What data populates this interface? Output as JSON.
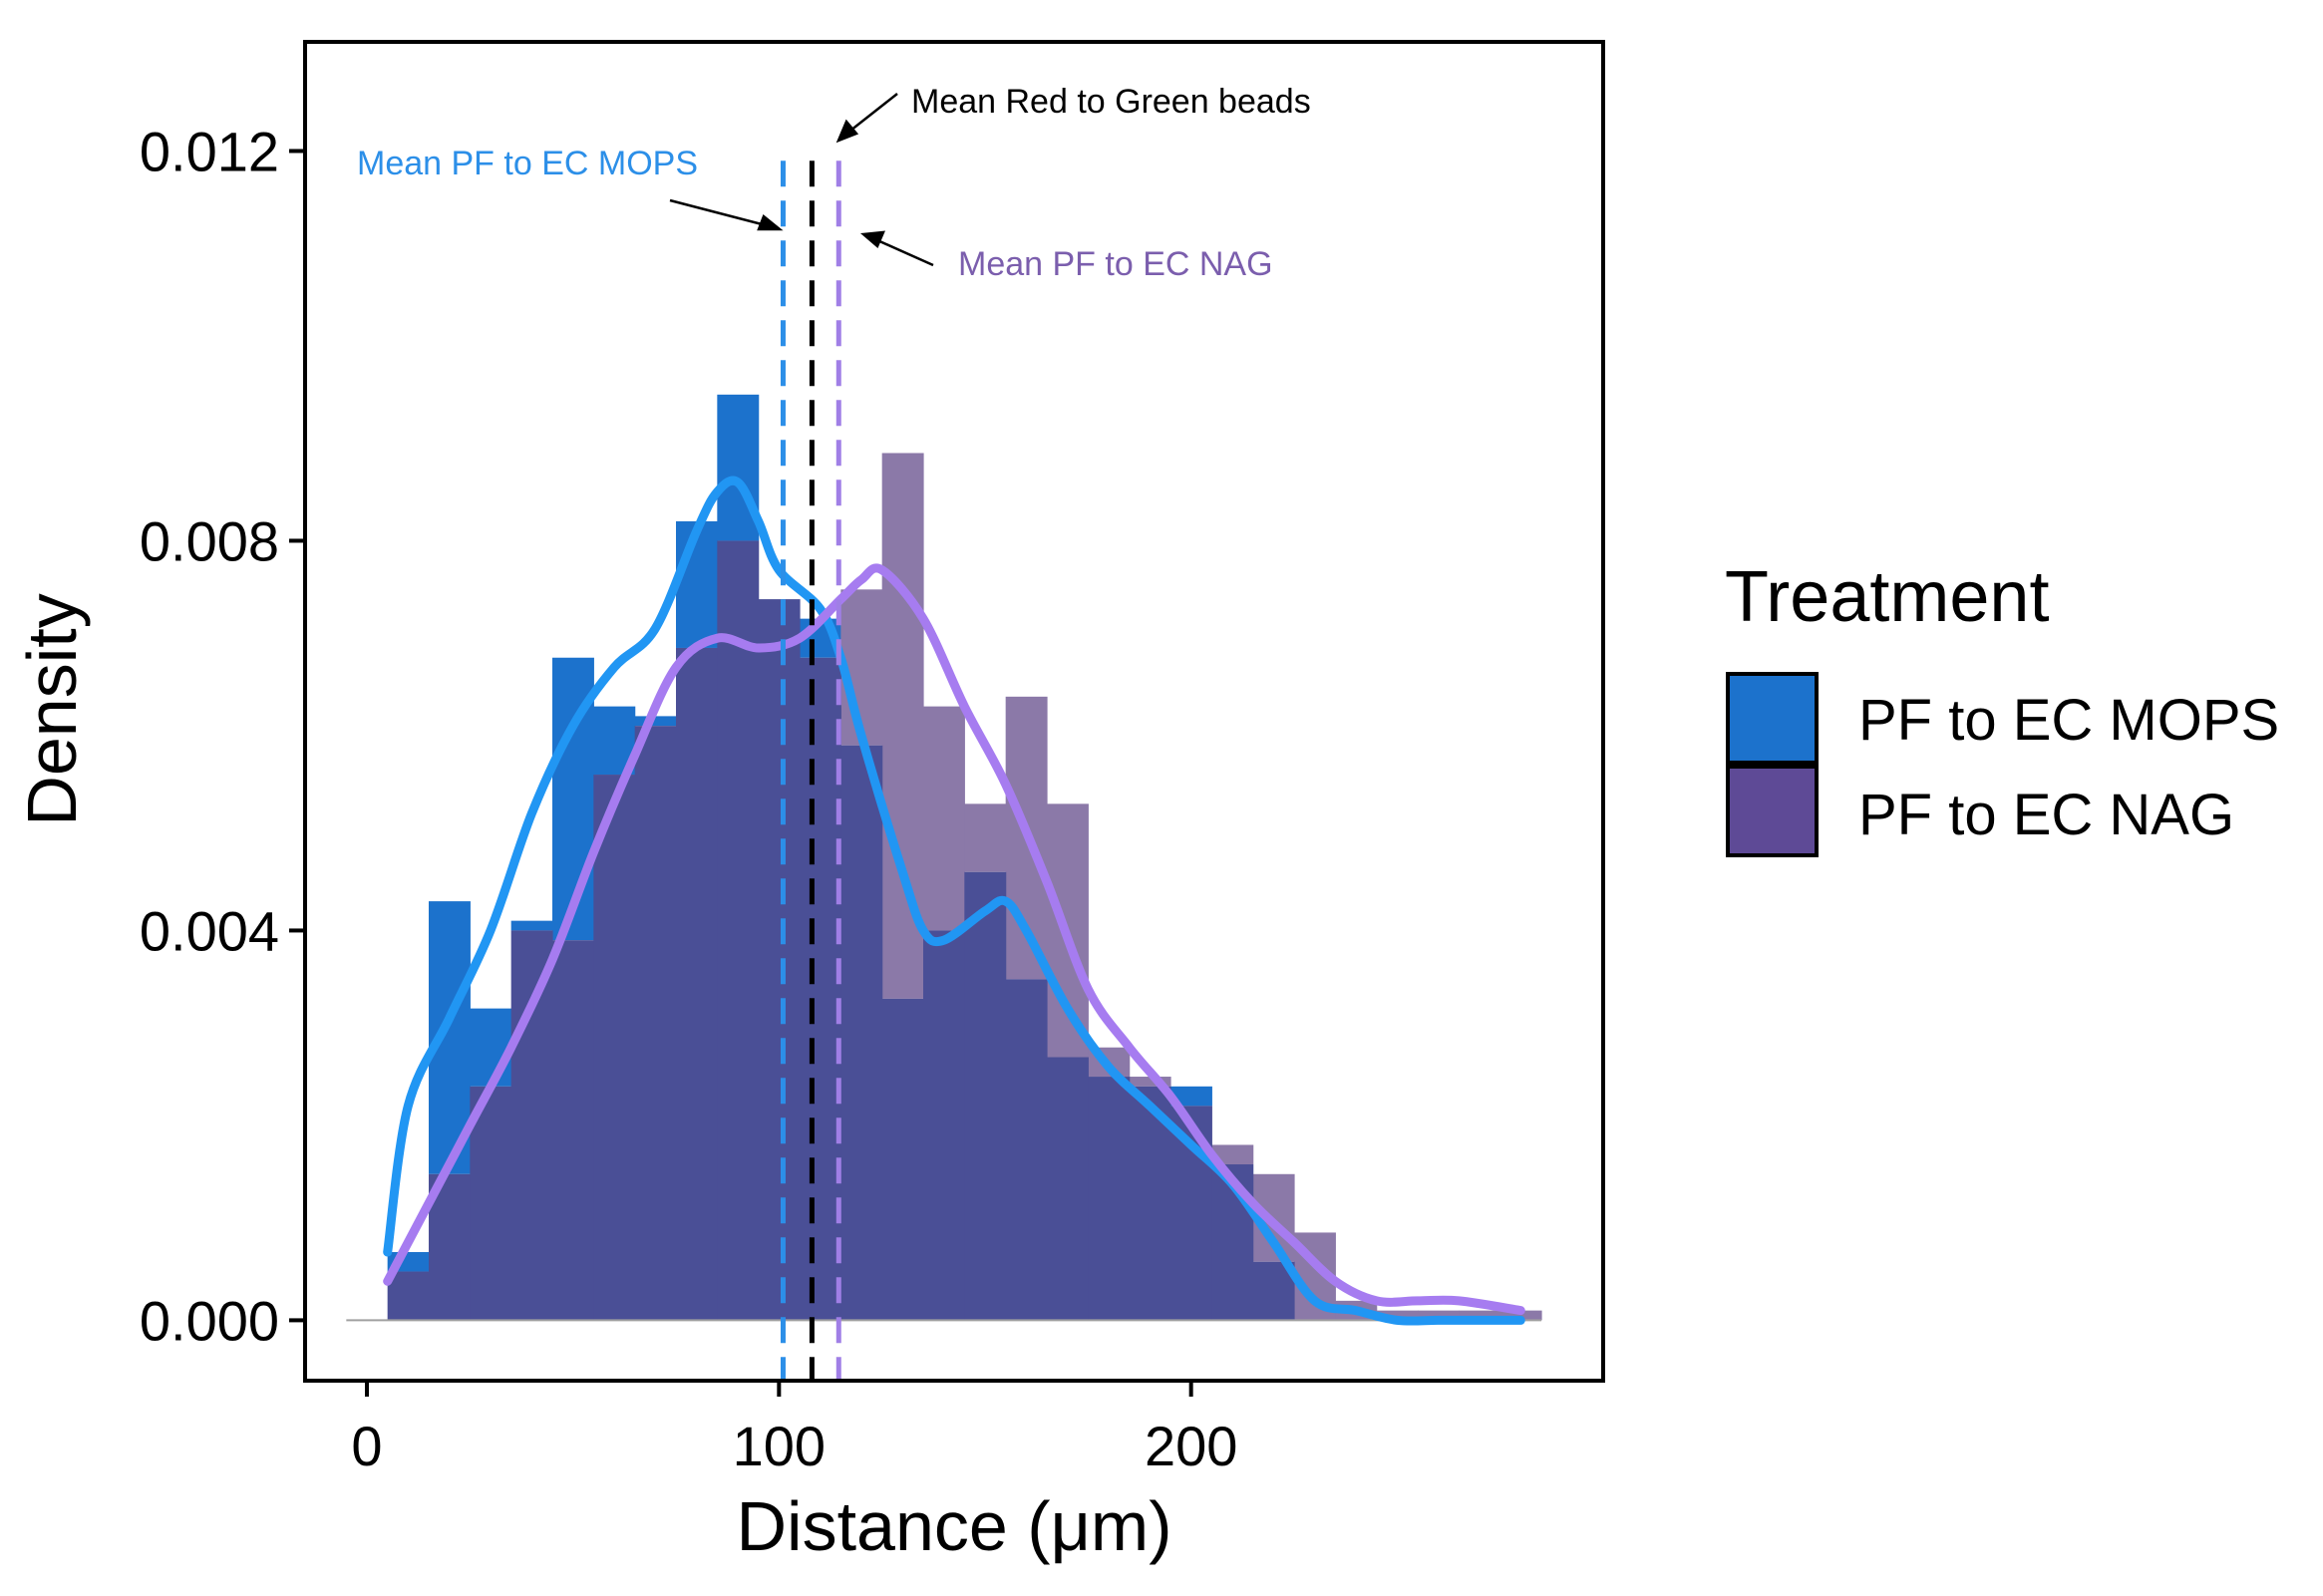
{
  "chart_data": {
    "type": "histogram",
    "title": "",
    "xlabel": "Distance (μm)",
    "ylabel": "Density",
    "xlim": [
      -15,
      300
    ],
    "ylim": [
      -0.00062,
      0.01312
    ],
    "x_ticks": [
      {
        "value": 0,
        "label": "0"
      },
      {
        "value": 100,
        "label": "100"
      },
      {
        "value": 200,
        "label": "200"
      }
    ],
    "y_ticks": [
      {
        "value": 0,
        "label": "0.000"
      },
      {
        "value": 0.004,
        "label": "0.004"
      },
      {
        "value": 0.008,
        "label": "0.008"
      },
      {
        "value": 0.012,
        "label": "0.012"
      }
    ],
    "bin_edges": [
      -5,
      5,
      15,
      25,
      35,
      45,
      55,
      65,
      75,
      85,
      95,
      105,
      115,
      125,
      135,
      145,
      155,
      165,
      175,
      185,
      195,
      205,
      215,
      225,
      235,
      245,
      255,
      265,
      275,
      285
    ],
    "series": [
      {
        "name": "PF to EC MOPS",
        "color": "#1C72CC",
        "densities": [
          0.0,
          0.0007,
          0.0043,
          0.0032,
          0.0041,
          0.0068,
          0.0063,
          0.0062,
          0.0082,
          0.0095,
          0.0074,
          0.0072,
          0.0059,
          0.0033,
          0.004,
          0.0046,
          0.0035,
          0.0027,
          0.0025,
          0.0024,
          0.0024,
          0.0016,
          0.0006,
          0.0,
          0.0,
          0.0,
          0.0,
          0.0,
          0.0
        ],
        "density_curve_x": [
          5,
          10,
          20,
          30,
          40,
          50,
          60,
          70,
          80,
          85,
          90,
          95,
          100,
          110,
          115,
          120,
          130,
          135,
          140,
          150,
          155,
          160,
          170,
          180,
          190,
          200,
          210,
          220,
          230,
          240,
          250,
          260,
          270,
          280
        ],
        "density_curve_y": [
          0.0007,
          0.0022,
          0.0031,
          0.004,
          0.0052,
          0.0061,
          0.0067,
          0.0071,
          0.0081,
          0.0085,
          0.0086,
          0.0082,
          0.0077,
          0.0073,
          0.0068,
          0.006,
          0.0046,
          0.004,
          0.0039,
          0.0042,
          0.0043,
          0.004,
          0.0032,
          0.0026,
          0.0022,
          0.0018,
          0.0014,
          0.0008,
          0.0002,
          0.0001,
          0.0,
          0.0,
          0.0,
          0.0
        ]
      },
      {
        "name": "PF to EC NAG",
        "color": "#5E4A96",
        "densities": [
          0.0,
          0.0005,
          0.0015,
          0.0024,
          0.004,
          0.0039,
          0.0056,
          0.0061,
          0.0069,
          0.008,
          0.0074,
          0.0068,
          0.0075,
          0.0089,
          0.0063,
          0.0053,
          0.0064,
          0.0053,
          0.0028,
          0.0025,
          0.0022,
          0.0018,
          0.0015,
          0.0009,
          0.0002,
          0.0001,
          0.0001,
          0.0001,
          0.0001
        ],
        "density_curve_x": [
          5,
          15,
          25,
          35,
          45,
          55,
          65,
          75,
          85,
          95,
          105,
          115,
          120,
          125,
          135,
          145,
          155,
          165,
          175,
          185,
          195,
          205,
          215,
          225,
          235,
          245,
          255,
          265,
          280
        ],
        "density_curve_y": [
          0.0004,
          0.0012,
          0.002,
          0.0028,
          0.0037,
          0.0048,
          0.0058,
          0.0067,
          0.007,
          0.0069,
          0.007,
          0.0074,
          0.0076,
          0.0077,
          0.0072,
          0.0063,
          0.0055,
          0.0045,
          0.0034,
          0.0028,
          0.0023,
          0.0017,
          0.0012,
          0.0008,
          0.0004,
          0.0002,
          0.0002,
          0.0002,
          0.0001
        ]
      }
    ],
    "vlines": [
      {
        "x": 101,
        "color": "#2C8FE8",
        "style": "dashed",
        "label": "Mean PF to EC MOPS"
      },
      {
        "x": 108,
        "color": "#000000",
        "style": "dashed",
        "label": "Mean Red to Green beads"
      },
      {
        "x": 114.5,
        "color": "#A07FE6",
        "style": "dashed",
        "label": "Mean PF to EC NAG"
      }
    ],
    "annotations": [
      {
        "text": "Mean PF to EC MOPS",
        "color": "#2C8FE8",
        "target": "vline-0"
      },
      {
        "text": "Mean Red to Green beads",
        "color": "#000000",
        "target": "vline-1"
      },
      {
        "text": "Mean PF to EC NAG",
        "color": "#7B5EAD",
        "target": "vline-2"
      }
    ],
    "legend": {
      "title": "Treatment",
      "position": "right",
      "entries": [
        {
          "label": "PF to EC MOPS",
          "color": "#1C72CC"
        },
        {
          "label": "PF to EC NAG",
          "color": "#5E4A96"
        }
      ]
    },
    "overlap_color": "#4A4F96",
    "nag_only_color": "#8B79A8",
    "mops_curve_color": "#2196F3",
    "nag_curve_color": "#A67CF0",
    "grid": false
  }
}
